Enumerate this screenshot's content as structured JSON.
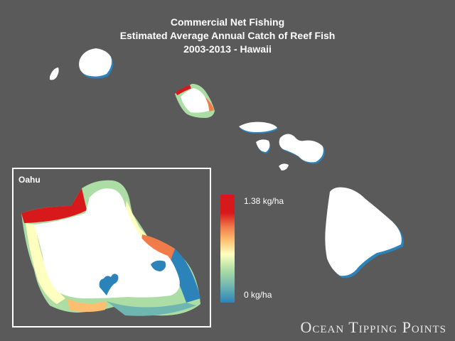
{
  "title": {
    "line1": "Commercial Net Fishing",
    "line2": "Estimated Average Annual Catch of Reef Fish",
    "line3": "2003-2013 - Hawaii"
  },
  "inset": {
    "label": "Oahu"
  },
  "legend": {
    "max_label": "1.38 kg/ha",
    "min_label": "0 kg/ha",
    "colors": [
      "#d7191c",
      "#f07c4a",
      "#fdbf6f",
      "#ffffbf",
      "#abdda4",
      "#6fb6b0",
      "#2b83ba"
    ]
  },
  "logo": {
    "text": "Ocean Tipping Points"
  },
  "colors": {
    "background": "#5a5a5a",
    "land": "#ffffff",
    "low_catch": "#2b83ba",
    "high_catch": "#d7191c"
  }
}
